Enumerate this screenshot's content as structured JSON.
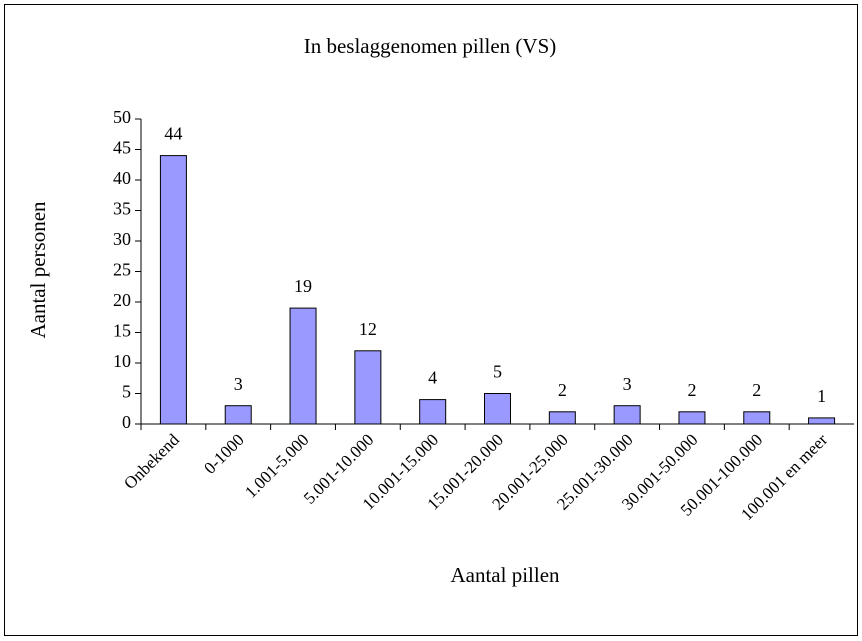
{
  "chart_data": {
    "type": "bar",
    "title": "In beslaggenomen pillen (VS)",
    "x_label": "Aantal pillen",
    "y_label": "Aantal personen",
    "categories": [
      "Onbekend",
      "0-1000",
      "1.001-5.000",
      "5.001-10.000",
      "10.001-15.000",
      "15.001-20.000",
      "20.001-25.000",
      "25.001-30.000",
      "30.001-50.000",
      "50.001-100.000",
      "100.001 en meer"
    ],
    "values": [
      44,
      3,
      19,
      12,
      4,
      5,
      2,
      3,
      2,
      2,
      1
    ],
    "color": "#9999ff",
    "ylim": [
      0,
      50
    ],
    "yticks": [
      0,
      5,
      10,
      15,
      20,
      25,
      30,
      35,
      40,
      45,
      50
    ],
    "grid": false
  }
}
